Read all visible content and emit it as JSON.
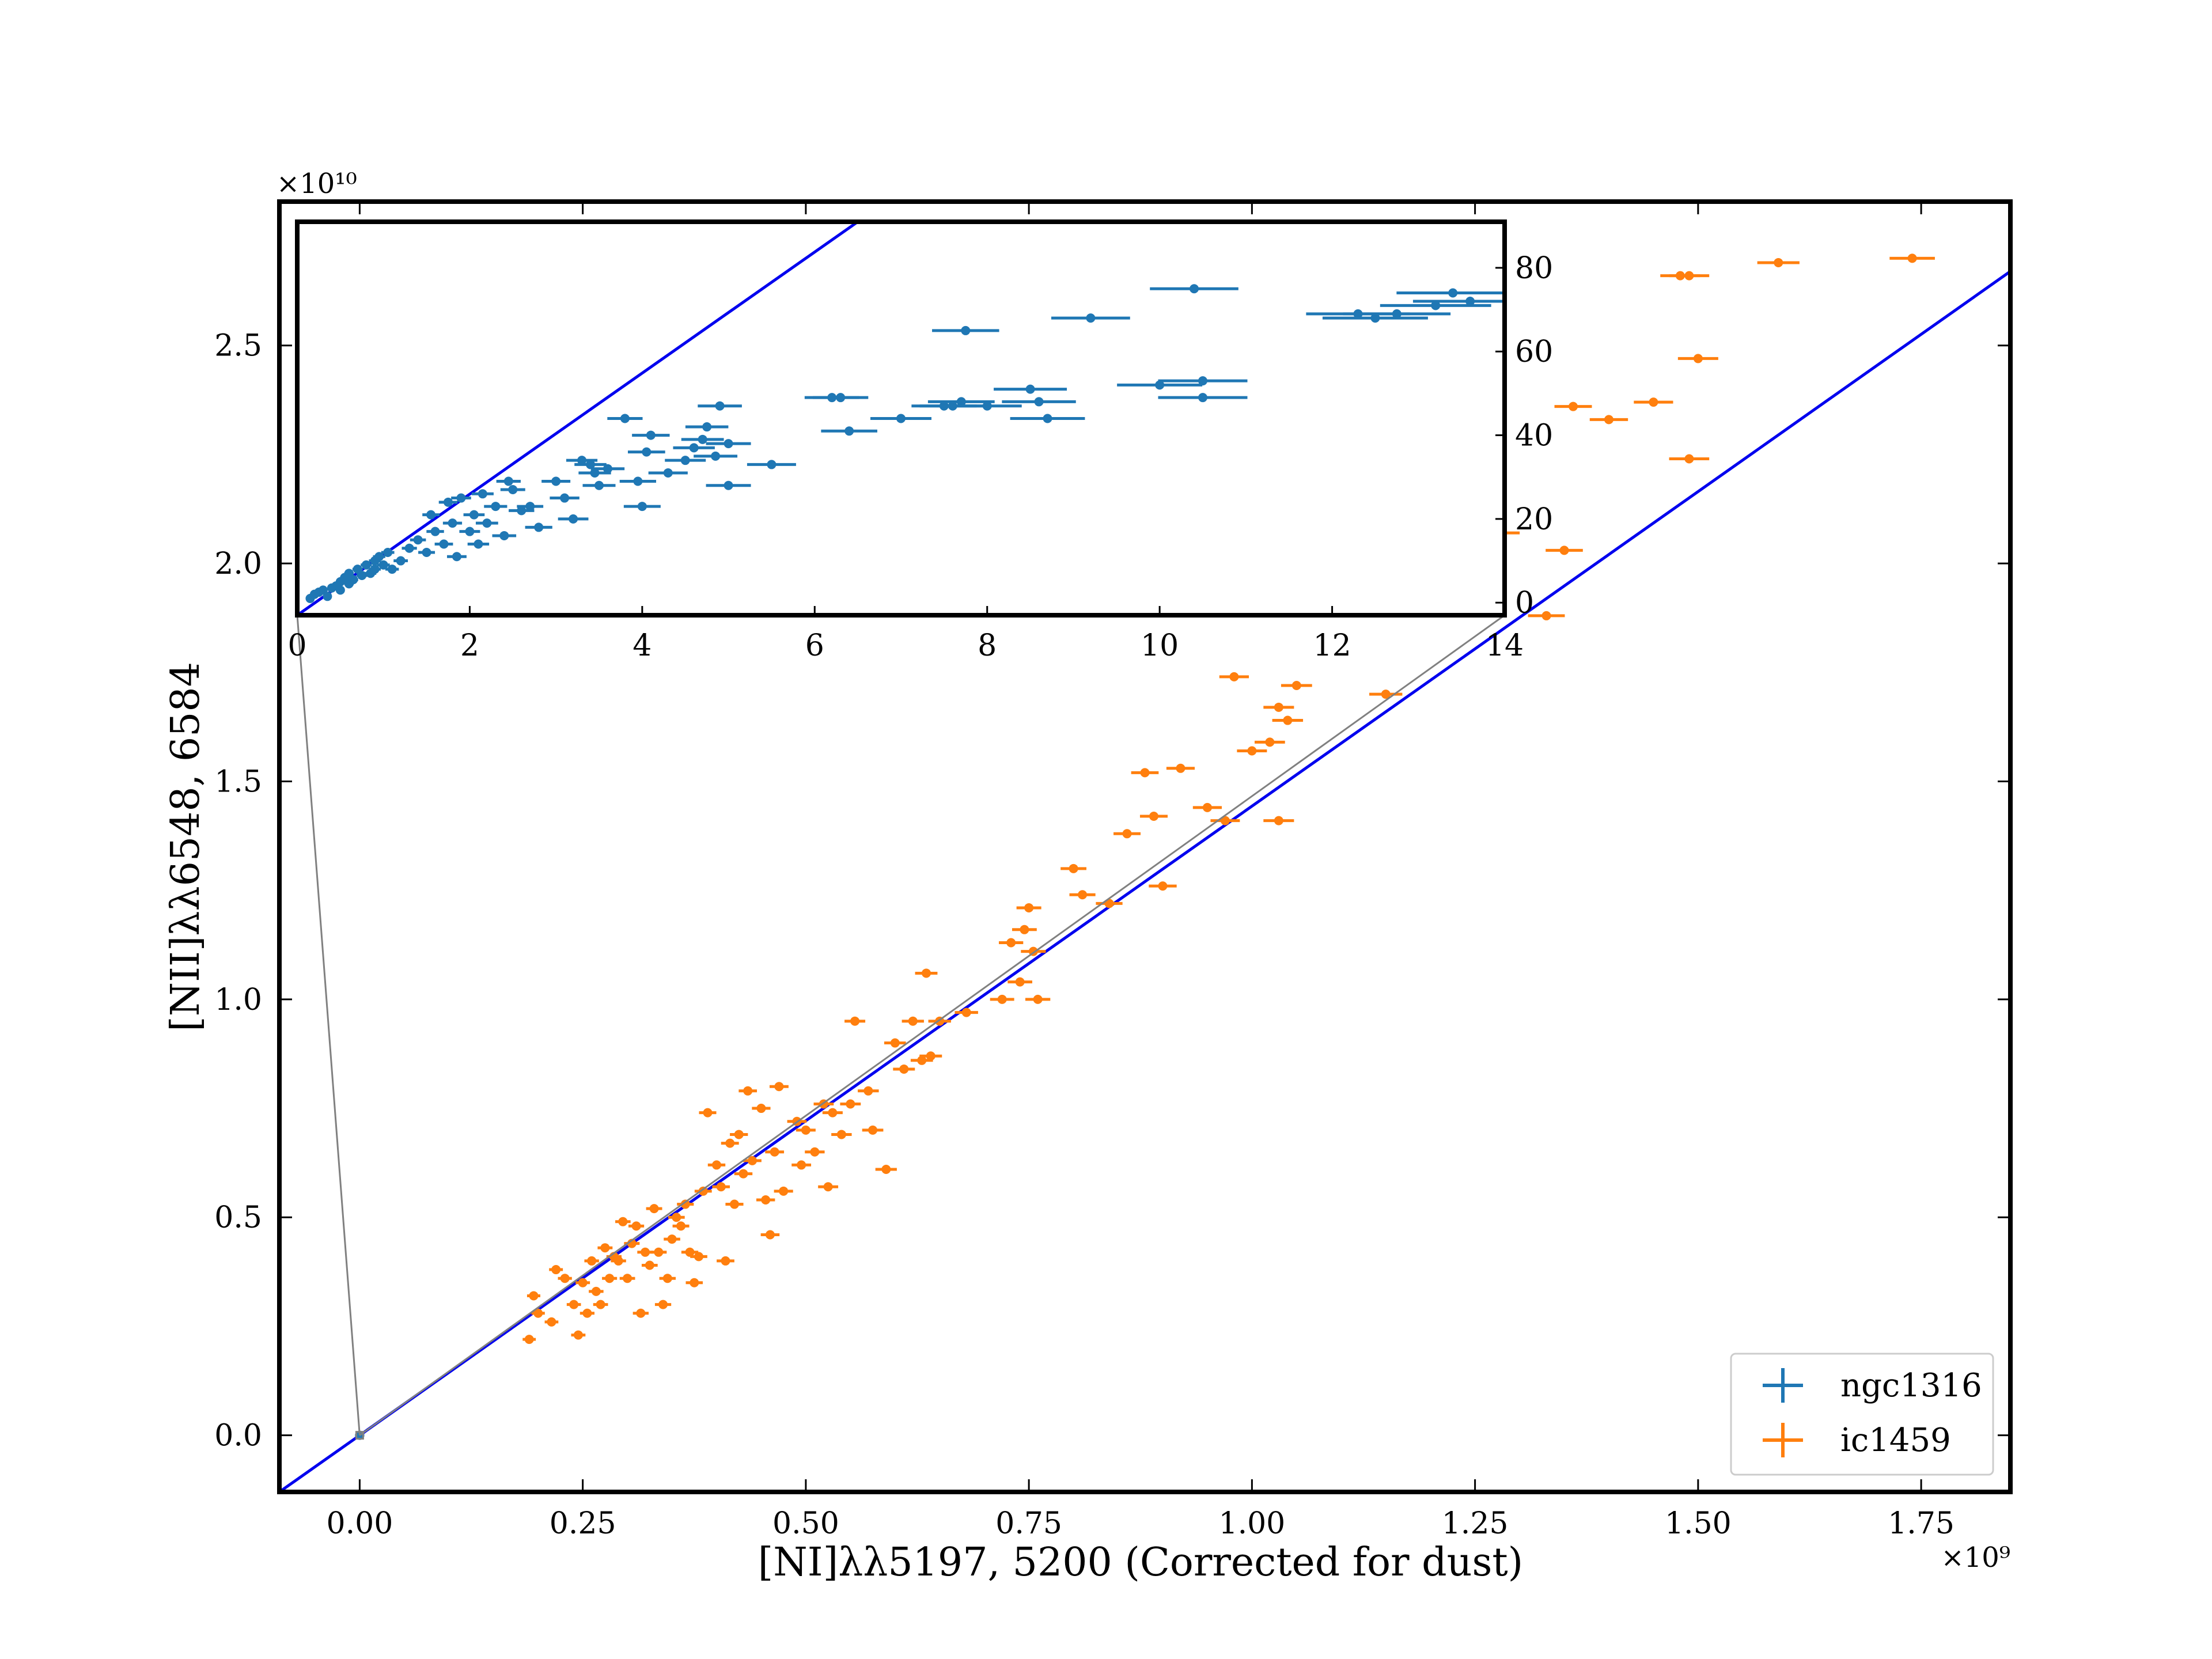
{
  "chart_data": {
    "type": "scatter",
    "main": {
      "xlabel": "[NI]λλ5197, 5200 (Corrected for dust)",
      "ylabel": "[NII]λλ6548, 6584",
      "x_multiplier": "×10⁹",
      "y_multiplier": "×10¹⁰",
      "xlim": [
        -0.09,
        1.85
      ],
      "ylim": [
        -0.13,
        2.83
      ],
      "x_ticks": [
        0.0,
        0.25,
        0.5,
        0.75,
        1.0,
        1.25,
        1.5,
        1.75
      ],
      "x_tick_labels": [
        "0.00",
        "0.25",
        "0.50",
        "0.75",
        "1.00",
        "1.25",
        "1.50",
        "1.75"
      ],
      "y_ticks": [
        0.0,
        0.5,
        1.0,
        1.5,
        2.0,
        2.5
      ],
      "y_tick_labels": [
        "0.0",
        "0.5",
        "1.0",
        "1.5",
        "2.0",
        "2.5"
      ],
      "line": {
        "x": [
          -0.09,
          1.85
        ],
        "y": [
          -0.13,
          2.67
        ],
        "color": "#0000ee"
      },
      "series": [
        {
          "name": "ngc1316",
          "color": "#1f77b4",
          "points": [
            [
              0.0,
              0.0
            ]
          ]
        },
        {
          "name": "ic1459",
          "color": "#ff7f0e",
          "points": [
            [
              0.19,
              0.22
            ],
            [
              0.195,
              0.32
            ],
            [
              0.2,
              0.28
            ],
            [
              0.215,
              0.26
            ],
            [
              0.22,
              0.38
            ],
            [
              0.23,
              0.36
            ],
            [
              0.24,
              0.3
            ],
            [
              0.245,
              0.23
            ],
            [
              0.25,
              0.35
            ],
            [
              0.255,
              0.28
            ],
            [
              0.26,
              0.4
            ],
            [
              0.265,
              0.33
            ],
            [
              0.27,
              0.3
            ],
            [
              0.275,
              0.43
            ],
            [
              0.28,
              0.36
            ],
            [
              0.285,
              0.41
            ],
            [
              0.29,
              0.4
            ],
            [
              0.295,
              0.49
            ],
            [
              0.3,
              0.36
            ],
            [
              0.305,
              0.44
            ],
            [
              0.31,
              0.48
            ],
            [
              0.315,
              0.28
            ],
            [
              0.32,
              0.42
            ],
            [
              0.325,
              0.39
            ],
            [
              0.33,
              0.52
            ],
            [
              0.335,
              0.42
            ],
            [
              0.34,
              0.3
            ],
            [
              0.345,
              0.36
            ],
            [
              0.35,
              0.45
            ],
            [
              0.355,
              0.5
            ],
            [
              0.36,
              0.48
            ],
            [
              0.365,
              0.53
            ],
            [
              0.37,
              0.42
            ],
            [
              0.375,
              0.35
            ],
            [
              0.38,
              0.41
            ],
            [
              0.385,
              0.56
            ],
            [
              0.39,
              0.74
            ],
            [
              0.4,
              0.62
            ],
            [
              0.405,
              0.57
            ],
            [
              0.41,
              0.4
            ],
            [
              0.415,
              0.67
            ],
            [
              0.42,
              0.53
            ],
            [
              0.425,
              0.69
            ],
            [
              0.43,
              0.6
            ],
            [
              0.435,
              0.79
            ],
            [
              0.44,
              0.63
            ],
            [
              0.45,
              0.75
            ],
            [
              0.455,
              0.54
            ],
            [
              0.46,
              0.46
            ],
            [
              0.465,
              0.65
            ],
            [
              0.47,
              0.8
            ],
            [
              0.475,
              0.56
            ],
            [
              0.49,
              0.72
            ],
            [
              0.495,
              0.62
            ],
            [
              0.5,
              0.7
            ],
            [
              0.51,
              0.65
            ],
            [
              0.52,
              0.76
            ],
            [
              0.525,
              0.57
            ],
            [
              0.53,
              0.74
            ],
            [
              0.54,
              0.69
            ],
            [
              0.55,
              0.76
            ],
            [
              0.555,
              0.95
            ],
            [
              0.57,
              0.79
            ],
            [
              0.575,
              0.7
            ],
            [
              0.59,
              0.61
            ],
            [
              0.6,
              0.9
            ],
            [
              0.61,
              0.84
            ],
            [
              0.62,
              0.95
            ],
            [
              0.63,
              0.86
            ],
            [
              0.635,
              1.06
            ],
            [
              0.64,
              0.87
            ],
            [
              0.65,
              0.95
            ],
            [
              0.68,
              0.97
            ],
            [
              0.72,
              1.0
            ],
            [
              0.73,
              1.13
            ],
            [
              0.74,
              1.04
            ],
            [
              0.745,
              1.16
            ],
            [
              0.75,
              1.21
            ],
            [
              0.755,
              1.11
            ],
            [
              0.76,
              1.0
            ],
            [
              0.8,
              1.3
            ],
            [
              0.81,
              1.24
            ],
            [
              0.84,
              1.22
            ],
            [
              0.86,
              1.38
            ],
            [
              0.88,
              1.52
            ],
            [
              0.89,
              1.42
            ],
            [
              0.9,
              1.26
            ],
            [
              0.92,
              1.53
            ],
            [
              0.95,
              1.44
            ],
            [
              0.97,
              1.41
            ],
            [
              0.98,
              1.74
            ],
            [
              1.0,
              1.57
            ],
            [
              1.03,
              1.67
            ],
            [
              1.04,
              1.64
            ],
            [
              1.05,
              1.72
            ],
            [
              1.02,
              1.59
            ],
            [
              1.03,
              1.41
            ],
            [
              1.15,
              1.7
            ],
            [
              1.24,
              1.89
            ],
            [
              1.25,
              2.13
            ],
            [
              1.28,
              2.07
            ],
            [
              1.33,
              1.88
            ],
            [
              1.35,
              2.03
            ],
            [
              1.36,
              2.36
            ],
            [
              1.4,
              2.33
            ],
            [
              1.45,
              2.37
            ],
            [
              1.48,
              2.66
            ],
            [
              1.49,
              2.66
            ],
            [
              1.5,
              2.47
            ],
            [
              1.49,
              2.24
            ],
            [
              1.59,
              2.69
            ],
            [
              1.74,
              2.7
            ]
          ]
        }
      ]
    },
    "inset": {
      "xlim": [
        0,
        14
      ],
      "ylim": [
        -3,
        91
      ],
      "x_ticks": [
        0,
        2,
        4,
        6,
        8,
        10,
        12,
        14
      ],
      "x_tick_labels": [
        "0",
        "2",
        "4",
        "6",
        "8",
        "10",
        "12",
        "14"
      ],
      "y_ticks": [
        0,
        20,
        40,
        60,
        80
      ],
      "y_tick_labels": [
        "0",
        "20",
        "40",
        "60",
        "80"
      ],
      "line": {
        "x": [
          0,
          6.5
        ],
        "y": [
          -3,
          91
        ],
        "color": "#0000ee"
      },
      "series": [
        {
          "name": "ngc1316",
          "color": "#1f77b4",
          "points": [
            [
              0.15,
              1
            ],
            [
              0.2,
              2
            ],
            [
              0.25,
              2.5
            ],
            [
              0.3,
              3
            ],
            [
              0.35,
              1.5
            ],
            [
              0.4,
              3.5
            ],
            [
              0.45,
              4
            ],
            [
              0.5,
              3
            ],
            [
              0.5,
              5
            ],
            [
              0.55,
              6
            ],
            [
              0.6,
              4.5
            ],
            [
              0.6,
              7
            ],
            [
              0.65,
              5.5
            ],
            [
              0.7,
              8
            ],
            [
              0.75,
              6.5
            ],
            [
              0.8,
              9
            ],
            [
              0.85,
              7
            ],
            [
              0.9,
              10
            ],
            [
              0.9,
              8
            ],
            [
              0.95,
              11
            ],
            [
              1.0,
              9
            ],
            [
              1.05,
              12
            ],
            [
              1.1,
              8
            ],
            [
              1.2,
              10
            ],
            [
              1.3,
              13
            ],
            [
              1.4,
              15
            ],
            [
              1.5,
              12
            ],
            [
              1.55,
              21
            ],
            [
              1.6,
              17
            ],
            [
              1.7,
              14
            ],
            [
              1.75,
              24
            ],
            [
              1.8,
              19
            ],
            [
              1.85,
              11
            ],
            [
              1.9,
              25
            ],
            [
              2.0,
              17
            ],
            [
              2.05,
              21
            ],
            [
              2.1,
              14
            ],
            [
              2.15,
              26
            ],
            [
              2.2,
              19
            ],
            [
              2.3,
              23
            ],
            [
              2.4,
              16
            ],
            [
              2.45,
              29
            ],
            [
              2.5,
              27
            ],
            [
              2.6,
              22
            ],
            [
              2.7,
              23
            ],
            [
              2.8,
              18
            ],
            [
              3.0,
              29
            ],
            [
              3.1,
              25
            ],
            [
              3.2,
              20
            ],
            [
              3.3,
              34
            ],
            [
              3.4,
              33
            ],
            [
              3.45,
              31
            ],
            [
              3.5,
              28
            ],
            [
              3.6,
              32
            ],
            [
              3.8,
              44
            ],
            [
              3.95,
              29
            ],
            [
              4.0,
              23
            ],
            [
              4.05,
              36
            ],
            [
              4.1,
              40
            ],
            [
              4.3,
              31
            ],
            [
              4.5,
              34
            ],
            [
              4.6,
              37
            ],
            [
              4.7,
              39
            ],
            [
              4.75,
              42
            ],
            [
              4.85,
              35
            ],
            [
              4.9,
              47
            ],
            [
              5.0,
              38
            ],
            [
              5.0,
              28
            ],
            [
              5.5,
              33
            ],
            [
              6.2,
              49
            ],
            [
              6.3,
              49
            ],
            [
              6.4,
              41
            ],
            [
              7.0,
              44
            ],
            [
              7.5,
              47
            ],
            [
              7.6,
              47
            ],
            [
              7.7,
              48
            ],
            [
              7.75,
              65
            ],
            [
              8.0,
              47
            ],
            [
              8.5,
              51
            ],
            [
              8.6,
              48
            ],
            [
              8.7,
              44
            ],
            [
              9.2,
              68
            ],
            [
              10.0,
              52
            ],
            [
              10.4,
              75
            ],
            [
              10.5,
              53
            ],
            [
              10.5,
              49
            ],
            [
              12.3,
              69
            ],
            [
              12.5,
              68
            ],
            [
              12.75,
              69
            ],
            [
              13.2,
              71
            ],
            [
              13.4,
              74
            ],
            [
              13.6,
              72
            ]
          ]
        }
      ]
    },
    "legend": {
      "position": "lower right",
      "entries": [
        {
          "label": "ngc1316",
          "color": "#1f77b4"
        },
        {
          "label": "ic1459",
          "color": "#ff7f0e"
        }
      ]
    }
  }
}
